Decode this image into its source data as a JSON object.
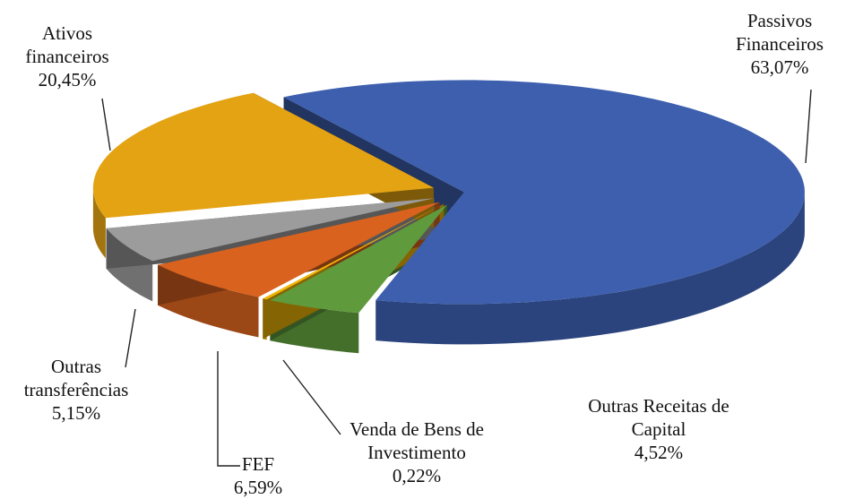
{
  "chart_data": {
    "type": "pie",
    "categories": [
      "Passivos Financeiros",
      "Outras Receitas de Capital",
      "Venda de Bens de Investimento",
      "FEF",
      "Outras transferências",
      "Ativos financeiros"
    ],
    "values": [
      63.07,
      4.52,
      0.22,
      6.59,
      5.15,
      20.45
    ],
    "value_labels": [
      "63,07%",
      "4,52%",
      "0,22%",
      "6,59%",
      "5,15%",
      "20,45%"
    ],
    "colors": [
      "#3d5fae",
      "#5f9a3c",
      "#f2b705",
      "#d9621f",
      "#9c9c9c",
      "#e3a313"
    ]
  }
}
